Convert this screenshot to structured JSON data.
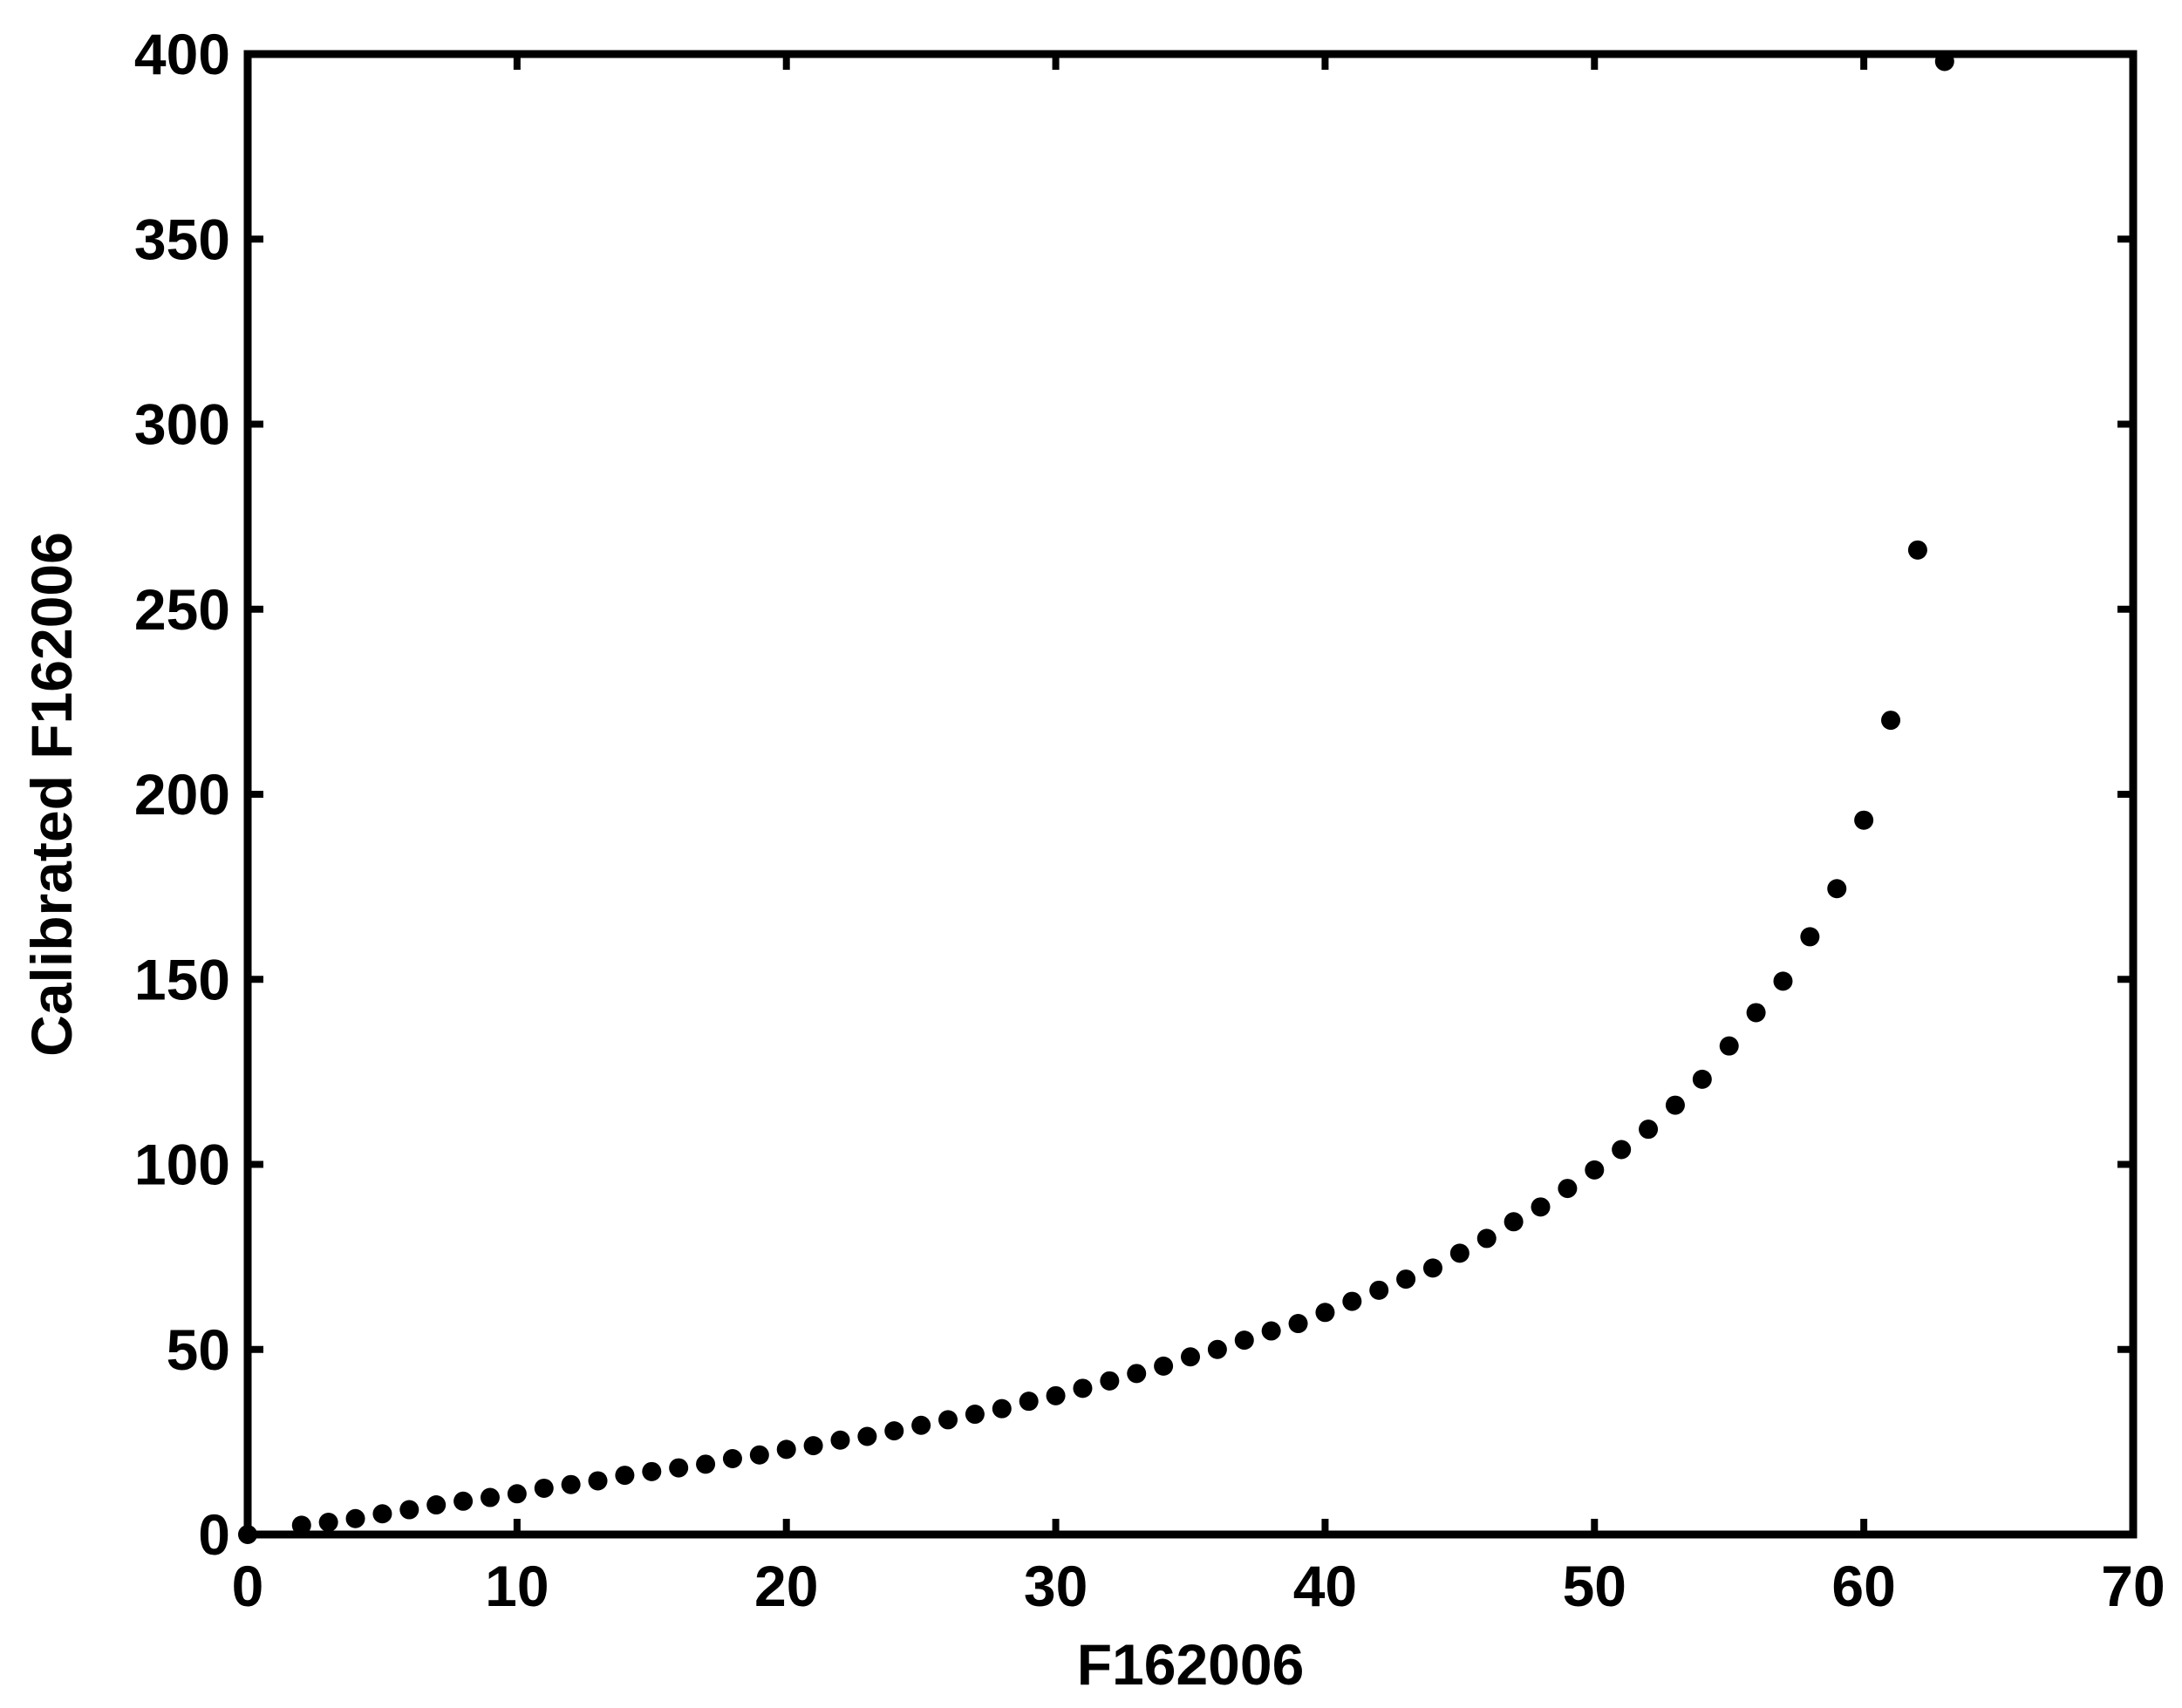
{
  "chart_data": {
    "type": "scatter",
    "title": "",
    "xlabel": "F162006",
    "ylabel": "Calibrated F162006",
    "xlim": [
      0,
      70
    ],
    "ylim": [
      0,
      400
    ],
    "xticks": [
      0,
      10,
      20,
      30,
      40,
      50,
      60,
      70
    ],
    "yticks": [
      0,
      50,
      100,
      150,
      200,
      250,
      300,
      350,
      400
    ],
    "grid": false,
    "legend": "none",
    "marker_color": "#000000",
    "series": [
      {
        "x": [
          0,
          2,
          3,
          4,
          5,
          6,
          7,
          8,
          9,
          10,
          11,
          12,
          13,
          14,
          15,
          16,
          17,
          18,
          19,
          20,
          21,
          22,
          23,
          24,
          25,
          26,
          27,
          28,
          29,
          30,
          31,
          32,
          33,
          34,
          35,
          36,
          37,
          38,
          39,
          40,
          41,
          42,
          43,
          44,
          45,
          46,
          47,
          48,
          49,
          50,
          51,
          52,
          53,
          54,
          55,
          56,
          57,
          58,
          59,
          60,
          61,
          62,
          63
        ],
        "y": [
          0,
          2.5,
          3.3,
          4.3,
          5.6,
          6.7,
          8,
          9,
          10,
          11,
          12.5,
          13.5,
          14.5,
          16,
          17,
          18,
          19,
          20.5,
          21.5,
          23,
          24,
          25.5,
          26.5,
          28,
          29.5,
          31,
          32.5,
          34,
          36,
          37.5,
          39.5,
          41.5,
          43.5,
          45.5,
          48,
          50,
          52.5,
          55,
          57,
          60,
          63,
          66,
          69,
          72,
          76,
          80,
          84.5,
          88.5,
          93.5,
          98.5,
          104,
          109.5,
          116,
          123,
          132,
          141,
          149.5,
          161.5,
          174.5,
          193,
          220,
          266,
          398
        ]
      }
    ]
  }
}
